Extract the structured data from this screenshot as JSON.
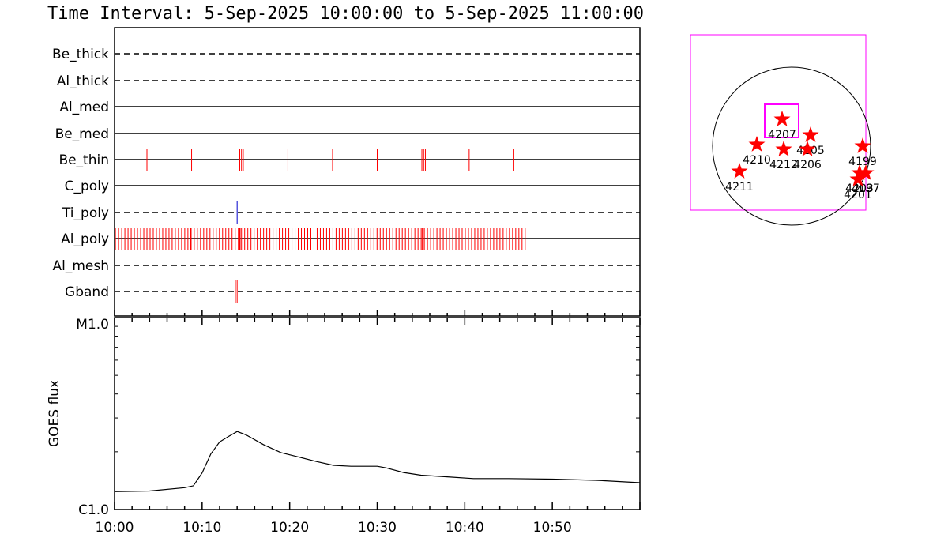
{
  "title": "Time Interval:  5-Sep-2025 10:00:00 to  5-Sep-2025 11:00:00",
  "colors": {
    "event": "#ff0000",
    "event_blue": "#0000cc",
    "box": "#ff00ff",
    "star": "#ff0000",
    "axis": "#000000"
  },
  "chart_data": [
    {
      "type": "timeline",
      "x_range_minutes": [
        0,
        60
      ],
      "x_tick_labels": [
        "10:00",
        "10:10",
        "10:20",
        "10:30",
        "10:40",
        "10:50"
      ],
      "rows": [
        {
          "label": "Be_thick",
          "style": "dashed",
          "events": []
        },
        {
          "label": "Al_thick",
          "style": "dashed",
          "events": []
        },
        {
          "label": "Al_med",
          "style": "solid",
          "events": []
        },
        {
          "label": "Be_med",
          "style": "solid",
          "events": []
        },
        {
          "label": "Be_thin",
          "style": "solid",
          "events": [
            3.7,
            8.8,
            14.3,
            14.5,
            14.7,
            19.8,
            24.9,
            30.0,
            35.1,
            35.3,
            35.5,
            40.5,
            45.6
          ]
        },
        {
          "label": "C_poly",
          "style": "solid",
          "events": []
        },
        {
          "label": "Ti_poly",
          "style": "dashed",
          "events": [
            14.0
          ],
          "event_color": "blue"
        },
        {
          "label": "Al_poly",
          "style": "solid",
          "events": [],
          "event_range": [
            0.1,
            47.0
          ],
          "event_step": 0.36
        },
        {
          "label": "Al_mesh",
          "style": "dashed",
          "events": []
        },
        {
          "label": "Gband",
          "style": "dashed",
          "events": [
            13.8,
            14.0
          ]
        }
      ]
    },
    {
      "type": "line",
      "ylabel": "GOES flux",
      "y_tick_labels": [
        "C1.0",
        "M1.0"
      ],
      "ylim": [
        1e-06,
        1e-05
      ],
      "x_range_minutes": [
        0,
        60
      ],
      "x_tick_labels": [
        "10:00",
        "10:10",
        "10:20",
        "10:30",
        "10:40",
        "10:50"
      ],
      "x": [
        0,
        4,
        8,
        9,
        10,
        11,
        12,
        13,
        14,
        15,
        17,
        19,
        21,
        23,
        25,
        27,
        29,
        30,
        31,
        33,
        35,
        38,
        41,
        45,
        50,
        55,
        60
      ],
      "y": [
        1.24e-06,
        1.25e-06,
        1.3e-06,
        1.33e-06,
        1.55e-06,
        1.95e-06,
        2.25e-06,
        2.4e-06,
        2.55e-06,
        2.45e-06,
        2.18e-06,
        1.98e-06,
        1.88e-06,
        1.78e-06,
        1.7e-06,
        1.68e-06,
        1.68e-06,
        1.68e-06,
        1.65e-06,
        1.56e-06,
        1.51e-06,
        1.48e-06,
        1.45e-06,
        1.45e-06,
        1.44e-06,
        1.42e-06,
        1.38e-06
      ]
    },
    {
      "type": "scatter",
      "stars": [
        {
          "label": "4207",
          "x": -0.12,
          "y": -0.34
        },
        {
          "label": "4210",
          "x": -0.44,
          "y": -0.02
        },
        {
          "label": "4212",
          "x": -0.1,
          "y": 0.04
        },
        {
          "label": "4205",
          "x": 0.24,
          "y": -0.14
        },
        {
          "label": "4206",
          "x": 0.2,
          "y": 0.04
        },
        {
          "label": "4211",
          "x": -0.66,
          "y": 0.32
        },
        {
          "label": "4199",
          "x": 0.9,
          "y": 0.0
        },
        {
          "label": "4203",
          "x": 0.86,
          "y": 0.34
        },
        {
          "label": "4197",
          "x": 0.94,
          "y": 0.34
        },
        {
          "label": "4201",
          "x": 0.84,
          "y": 0.42
        }
      ]
    }
  ]
}
